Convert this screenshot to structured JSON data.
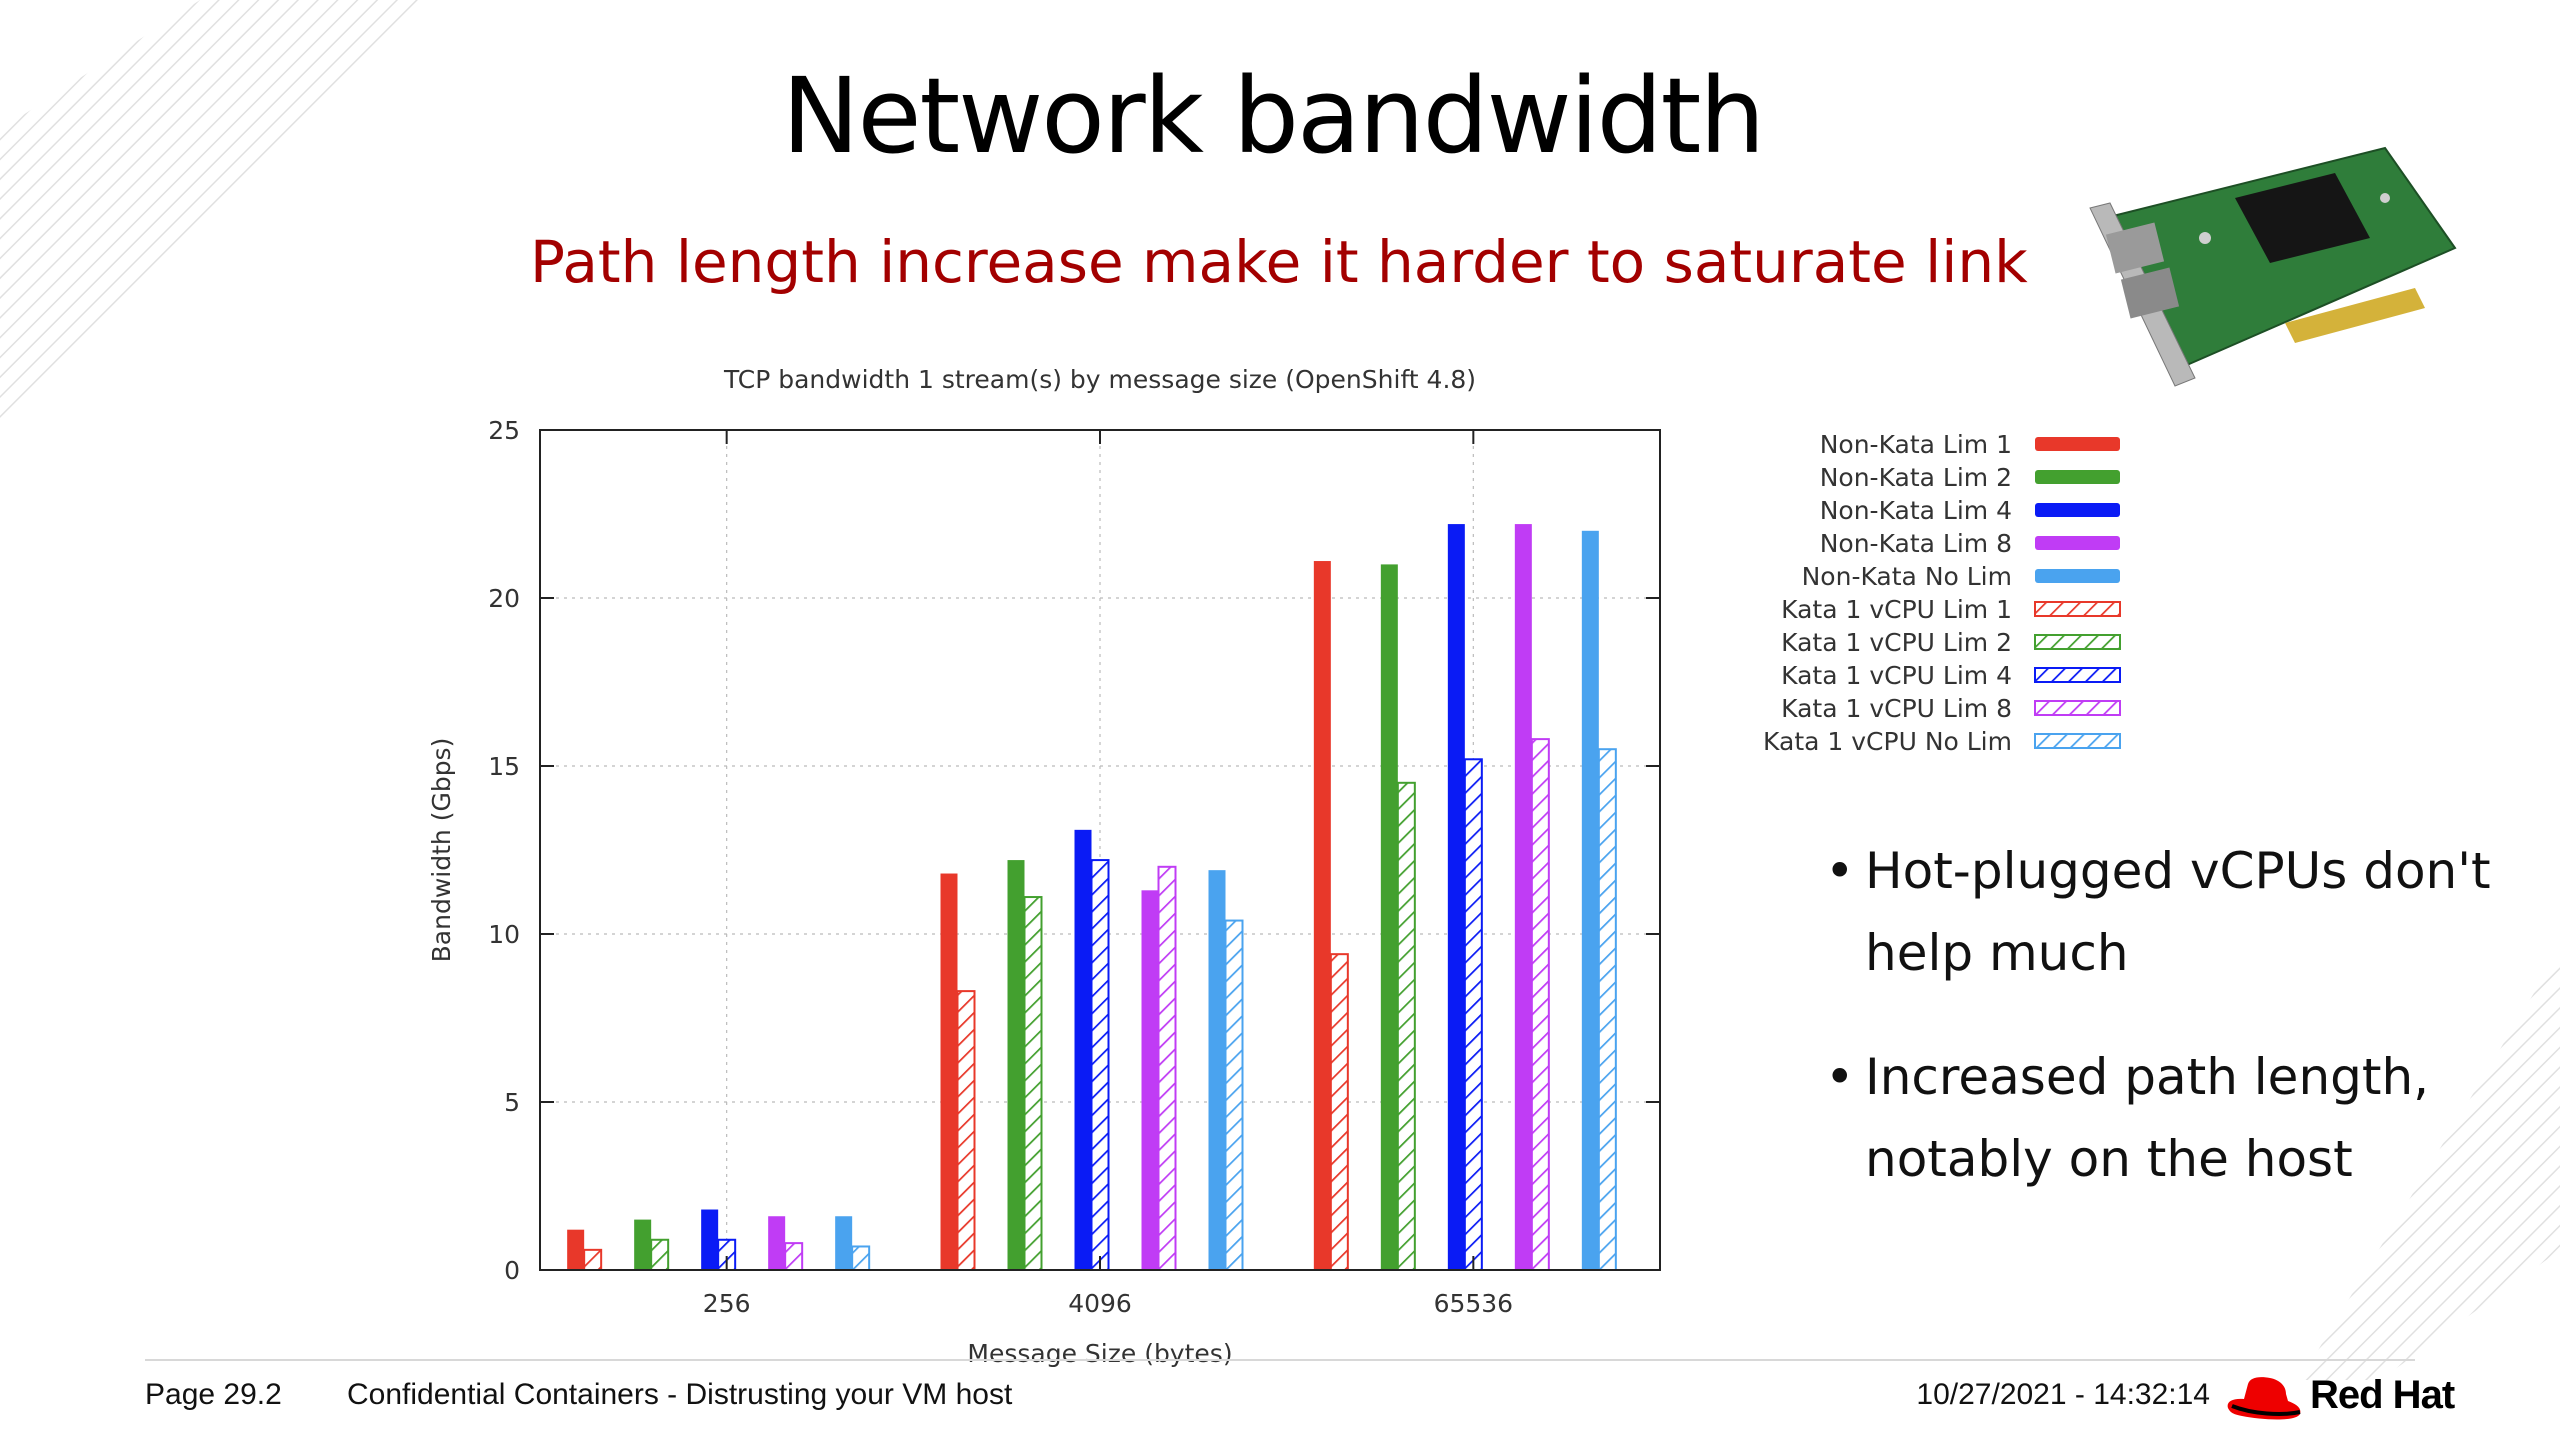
{
  "slide": {
    "title": "Network bandwidth",
    "subtitle": "Path length increase make it harder to saturate link",
    "bullets": [
      "Hot-plugged vCPUs don't help much",
      "Increased path length, notably on the host"
    ]
  },
  "footer": {
    "page": "Page 29.2",
    "document": "Confidential Containers - Distrusting your VM host",
    "datetime": "10/27/2021 - 14:32:14",
    "brand": "Red Hat"
  },
  "colors": {
    "title_accent": "#a30000",
    "red": "#e8382a",
    "green": "#43a02f",
    "blue": "#0a1bf5",
    "purple": "#c03cf5",
    "lightblue": "#4aa3ef"
  },
  "icons": {
    "nic_image": "network-card-icon",
    "logo": "red-hat-logo"
  },
  "chart_data": {
    "type": "bar",
    "title": "TCP bandwidth  1 stream(s) by message size (OpenShift 4.8)",
    "xlabel": "Message Size (bytes)",
    "ylabel": "Bandwidth (Gbps)",
    "ylim": [
      0,
      25
    ],
    "yticks": [
      0,
      5,
      10,
      15,
      20,
      25
    ],
    "categories": [
      "256",
      "4096",
      "65536"
    ],
    "grid": true,
    "legend_position": "right",
    "series": [
      {
        "name": "Non-Kata Lim 1",
        "color": "#e8382a",
        "style": "solid",
        "values": [
          1.2,
          11.8,
          21.1
        ]
      },
      {
        "name": "Non-Kata Lim 2",
        "color": "#43a02f",
        "style": "solid",
        "values": [
          1.5,
          12.2,
          21.0
        ]
      },
      {
        "name": "Non-Kata Lim 4",
        "color": "#0a1bf5",
        "style": "solid",
        "values": [
          1.8,
          13.1,
          22.2
        ]
      },
      {
        "name": "Non-Kata Lim 8",
        "color": "#c03cf5",
        "style": "solid",
        "values": [
          1.6,
          11.3,
          22.2
        ]
      },
      {
        "name": "Non-Kata No Lim",
        "color": "#4aa3ef",
        "style": "solid",
        "values": [
          1.6,
          11.9,
          22.0
        ]
      },
      {
        "name": "Kata 1 vCPU Lim 1",
        "color": "#e8382a",
        "style": "hatched",
        "values": [
          0.6,
          8.3,
          9.4
        ]
      },
      {
        "name": "Kata 1 vCPU Lim 2",
        "color": "#43a02f",
        "style": "hatched",
        "values": [
          0.9,
          11.1,
          14.5
        ]
      },
      {
        "name": "Kata 1 vCPU Lim 4",
        "color": "#0a1bf5",
        "style": "hatched",
        "values": [
          0.9,
          12.2,
          15.2
        ]
      },
      {
        "name": "Kata 1 vCPU Lim 8",
        "color": "#c03cf5",
        "style": "hatched",
        "values": [
          0.8,
          12.0,
          15.8
        ]
      },
      {
        "name": "Kata 1 vCPU No Lim",
        "color": "#4aa3ef",
        "style": "hatched",
        "values": [
          0.7,
          10.4,
          15.5
        ]
      }
    ]
  }
}
